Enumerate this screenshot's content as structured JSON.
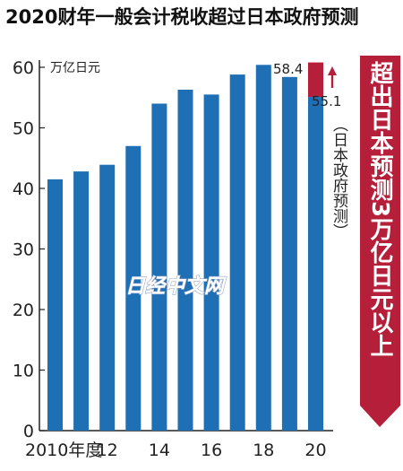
{
  "chart_data": {
    "type": "bar",
    "title": "2020财年一般会计税收超过日本政府预测",
    "unit_label": "万亿日元",
    "x": [
      2010,
      2011,
      2012,
      2013,
      2014,
      2015,
      2016,
      2017,
      2018,
      2019,
      2020
    ],
    "x_tick_labels": [
      "2010年度",
      "12",
      "14",
      "16",
      "18",
      "20"
    ],
    "values": [
      41.5,
      42.8,
      43.9,
      47.0,
      54.0,
      56.3,
      55.5,
      58.8,
      60.4,
      58.4,
      60.8
    ],
    "government_forecast_2020": 55.1,
    "data_labels": {
      "fy2019": "58.4",
      "forecast_2020": "55.1"
    },
    "ylim": [
      0,
      60
    ],
    "y_ticks": [
      0,
      10,
      20,
      30,
      40,
      50,
      60
    ],
    "annotation_vertical": "（日本政府预测）",
    "banner_text": "超出日本预测3万亿日元以上",
    "watermark": "日经中文网",
    "colors": {
      "bar": "#1f6fb5",
      "excess": "#b51f3a",
      "banner": "#b51f3a",
      "arrow": "#b51f3a"
    }
  }
}
